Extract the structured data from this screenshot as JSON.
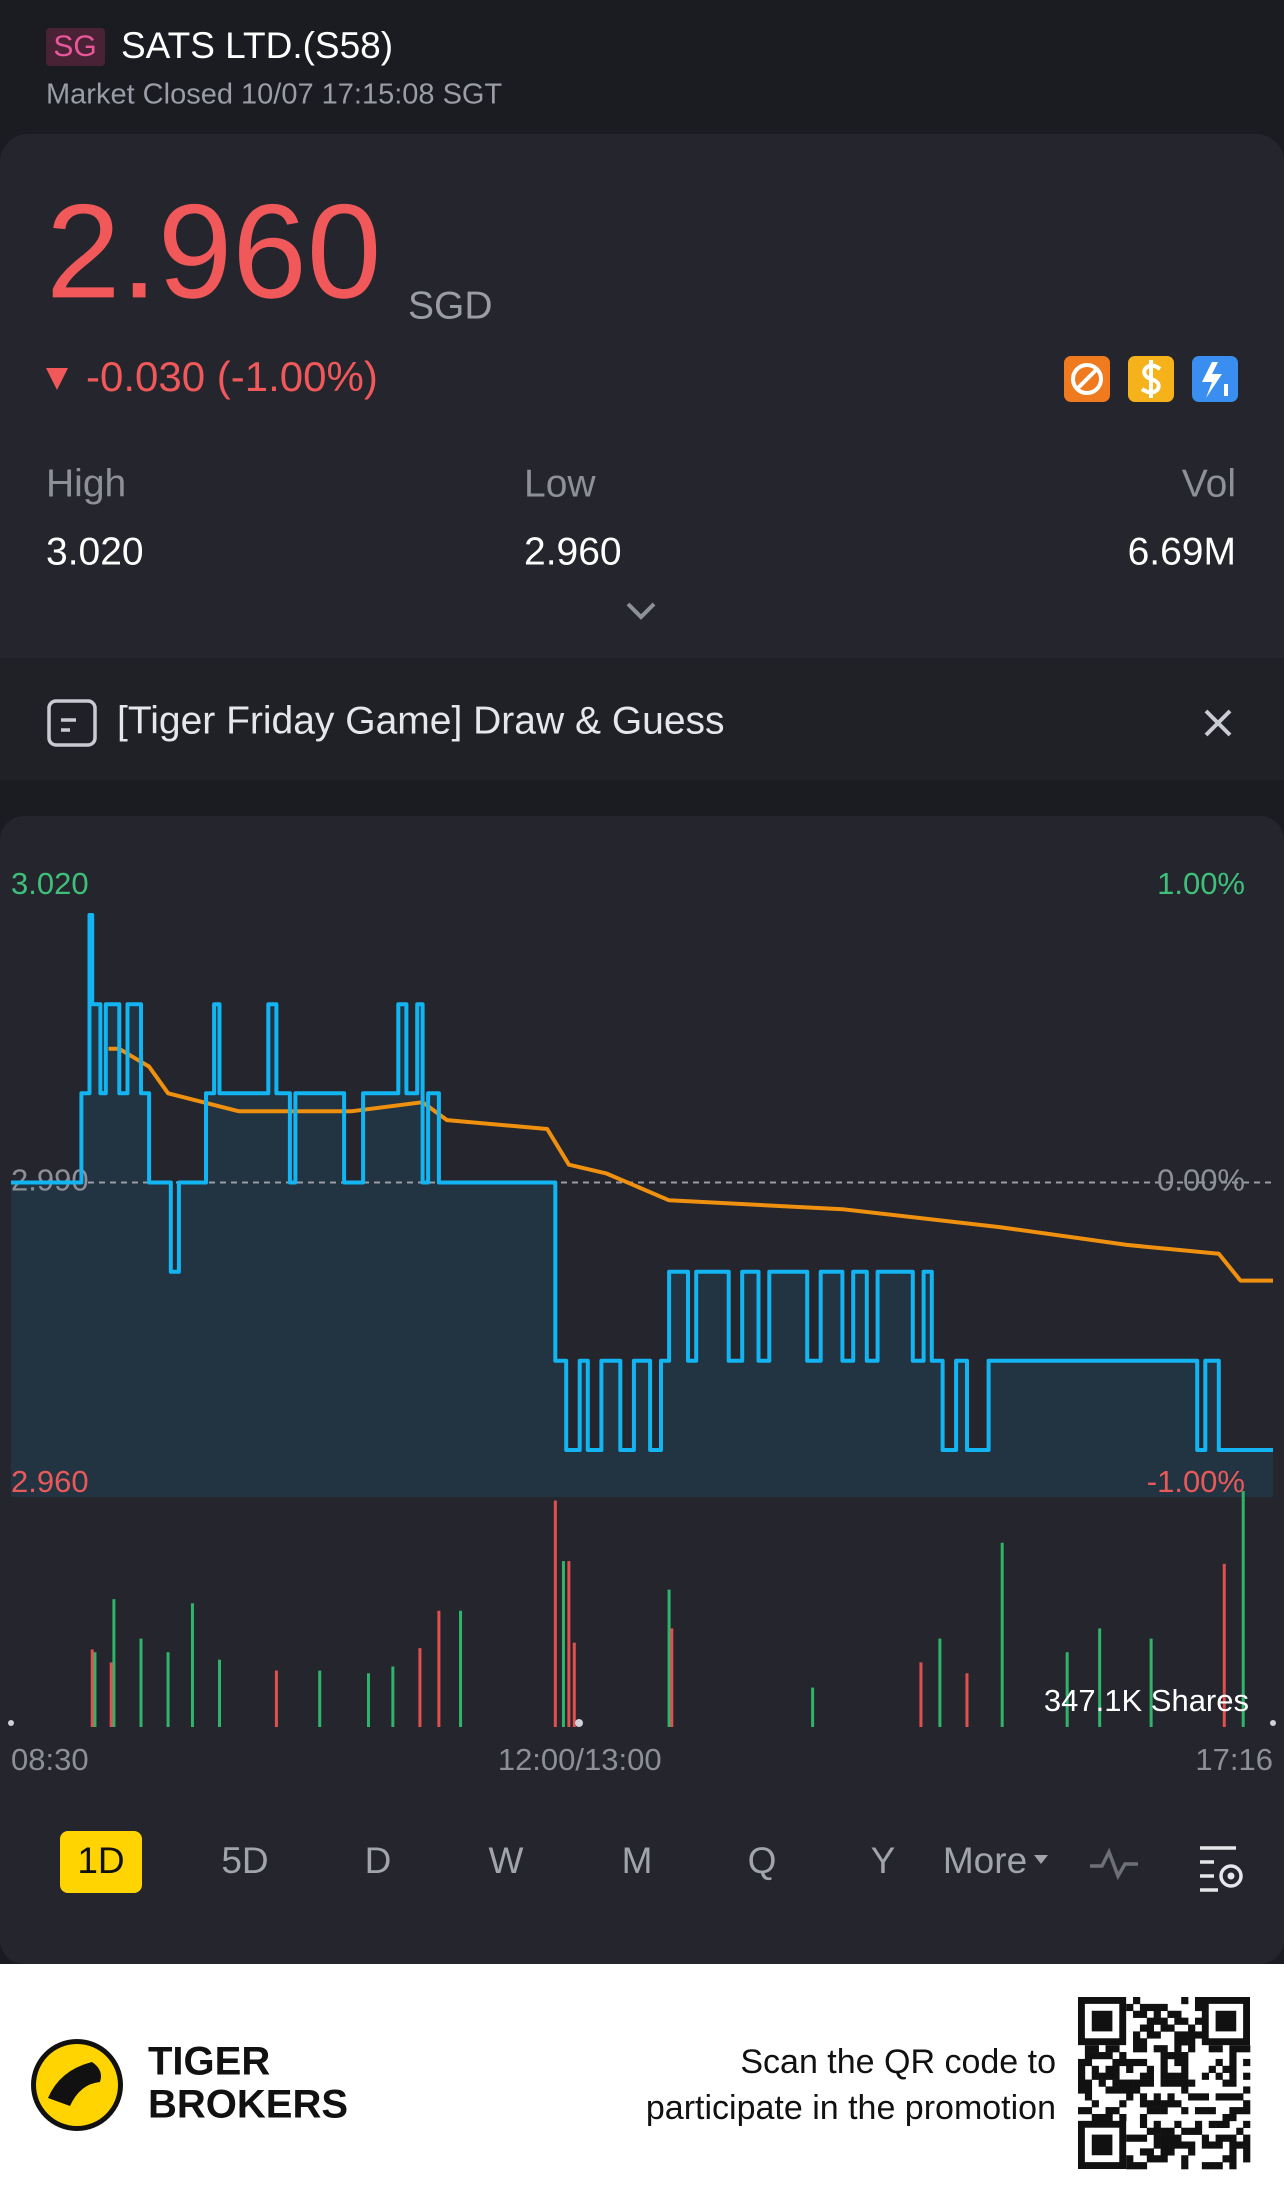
{
  "header": {
    "badge": "SG",
    "title": "SATS LTD.(S58)",
    "status": "Market Closed 10/07 17:15:08 SGT"
  },
  "quote": {
    "price": "2.960",
    "currency": "SGD",
    "change": "-0.030 (-1.00%)"
  },
  "stats": [
    {
      "label": "High",
      "value": "3.020"
    },
    {
      "label": "Low",
      "value": "2.960"
    },
    {
      "label": "Vol",
      "value": "6.69M"
    }
  ],
  "banner": {
    "text": "[Tiger Friday Game] Draw & Guess"
  },
  "chart_data": {
    "type": "line",
    "xlim": [
      0,
      466
    ],
    "xticks": [
      {
        "value": 0,
        "label": "08:30"
      },
      {
        "value": 210,
        "label": "12:00/13:00"
      },
      {
        "value": 466,
        "label": "17:16"
      }
    ],
    "ylim": [
      2.96,
      3.02
    ],
    "yticks": [
      {
        "value": 2.96,
        "label": "2.960"
      },
      {
        "value": 2.99,
        "label": "2.990"
      },
      {
        "value": 3.02,
        "label": "3.020"
      }
    ],
    "y2lim": [
      -1,
      1
    ],
    "y2ticks": [
      {
        "value": -1,
        "label": "-1.00%"
      },
      {
        "value": 0,
        "label": "0.00%"
      },
      {
        "value": 1,
        "label": "1.00%"
      }
    ],
    "series": [
      {
        "color": "#13b4f2",
        "fill": true,
        "x": [
          0,
          26,
          26,
          29,
          29,
          30,
          30,
          33,
          33,
          35,
          35,
          40,
          40,
          43,
          43,
          48,
          48,
          51,
          51,
          59,
          59,
          62,
          62,
          72,
          72,
          75,
          75,
          77,
          77,
          95,
          95,
          98,
          98,
          103,
          103,
          105,
          105,
          123,
          123,
          130,
          130,
          143,
          143,
          146,
          146,
          150,
          150,
          152,
          152,
          154,
          154,
          158,
          158,
          201,
          201,
          205,
          205,
          210,
          210,
          213,
          213,
          218,
          218,
          225,
          225,
          230,
          230,
          236,
          236,
          240,
          240,
          243,
          243,
          250,
          250,
          253,
          253,
          265,
          265,
          270,
          270,
          276,
          276,
          280,
          280,
          294,
          294,
          299,
          299,
          307,
          307,
          311,
          311,
          316,
          316,
          320,
          320,
          333,
          333,
          337,
          337,
          340,
          340,
          344,
          344,
          349,
          349,
          353,
          353,
          361,
          361,
          438,
          438,
          441,
          441,
          446,
          446,
          466
        ],
        "values": [
          2.99,
          2.99,
          3,
          3,
          3.02,
          3.02,
          3.01,
          3.01,
          3,
          3,
          3.01,
          3.01,
          3,
          3,
          3.01,
          3.01,
          3,
          3,
          2.99,
          2.99,
          2.98,
          2.98,
          2.99,
          2.99,
          3,
          3,
          3.01,
          3.01,
          3,
          3,
          3.01,
          3.01,
          3,
          3,
          2.99,
          2.99,
          3,
          3,
          2.99,
          2.99,
          3,
          3,
          3.01,
          3.01,
          3,
          3,
          3.01,
          3.01,
          2.99,
          2.99,
          3,
          3,
          2.99,
          2.99,
          2.97,
          2.97,
          2.96,
          2.96,
          2.97,
          2.97,
          2.96,
          2.96,
          2.97,
          2.97,
          2.96,
          2.96,
          2.97,
          2.97,
          2.96,
          2.96,
          2.97,
          2.97,
          2.98,
          2.98,
          2.97,
          2.97,
          2.98,
          2.98,
          2.97,
          2.97,
          2.98,
          2.98,
          2.97,
          2.97,
          2.98,
          2.98,
          2.97,
          2.97,
          2.98,
          2.98,
          2.97,
          2.97,
          2.98,
          2.98,
          2.97,
          2.97,
          2.98,
          2.98,
          2.97,
          2.97,
          2.98,
          2.98,
          2.97,
          2.97,
          2.96,
          2.96,
          2.97,
          2.97,
          2.96,
          2.96,
          2.97,
          2.97,
          2.96,
          2.96,
          2.97,
          2.97,
          2.96,
          2.96
        ]
      },
      {
        "color": "#f0900f",
        "fill": false,
        "x": [
          36,
          40,
          51,
          58,
          84,
          126,
          152,
          161,
          198,
          206,
          220,
          243,
          307,
          365,
          412,
          446,
          454,
          466
        ],
        "values": [
          3.005,
          3.005,
          3.003,
          3,
          2.998,
          2.998,
          2.999,
          2.997,
          2.996,
          2.992,
          2.991,
          2.988,
          2.987,
          2.985,
          2.983,
          2.982,
          2.979,
          2.979
        ]
      }
    ],
    "volume": {
      "ylim": [
        0,
        347100
      ],
      "yticks": [
        {
          "value": 347100,
          "label": "347.1K Shares"
        }
      ],
      "series": [
        {
          "color": "#2fb56a",
          "x": [
            31,
            38,
            48,
            58,
            67,
            77,
            114,
            132,
            141,
            166,
            204,
            243,
            296,
            343,
            366,
            390,
            402,
            421,
            455
          ],
          "values": [
            110000,
            188000,
            130000,
            110000,
            182000,
            99000,
            83000,
            79000,
            89000,
            171000,
            244000,
            202000,
            58000,
            130000,
            271000,
            110000,
            145000,
            130000,
            347000
          ]
        },
        {
          "color": "#e0504f",
          "x": [
            30,
            37,
            98,
            151,
            158,
            201,
            206,
            208,
            244,
            336,
            353,
            448
          ],
          "values": [
            114000,
            95000,
            83000,
            116000,
            171000,
            333000,
            244000,
            124000,
            145000,
            95000,
            79000,
            240000
          ]
        }
      ]
    }
  },
  "tabs": [
    "1D",
    "5D",
    "D",
    "W",
    "M",
    "Q",
    "Y",
    "More"
  ],
  "footer": {
    "brand_line1": "TIGER",
    "brand_line2": "BROKERS",
    "promo_line1": "Scan the QR code to",
    "promo_line2": "participate in the promotion"
  }
}
